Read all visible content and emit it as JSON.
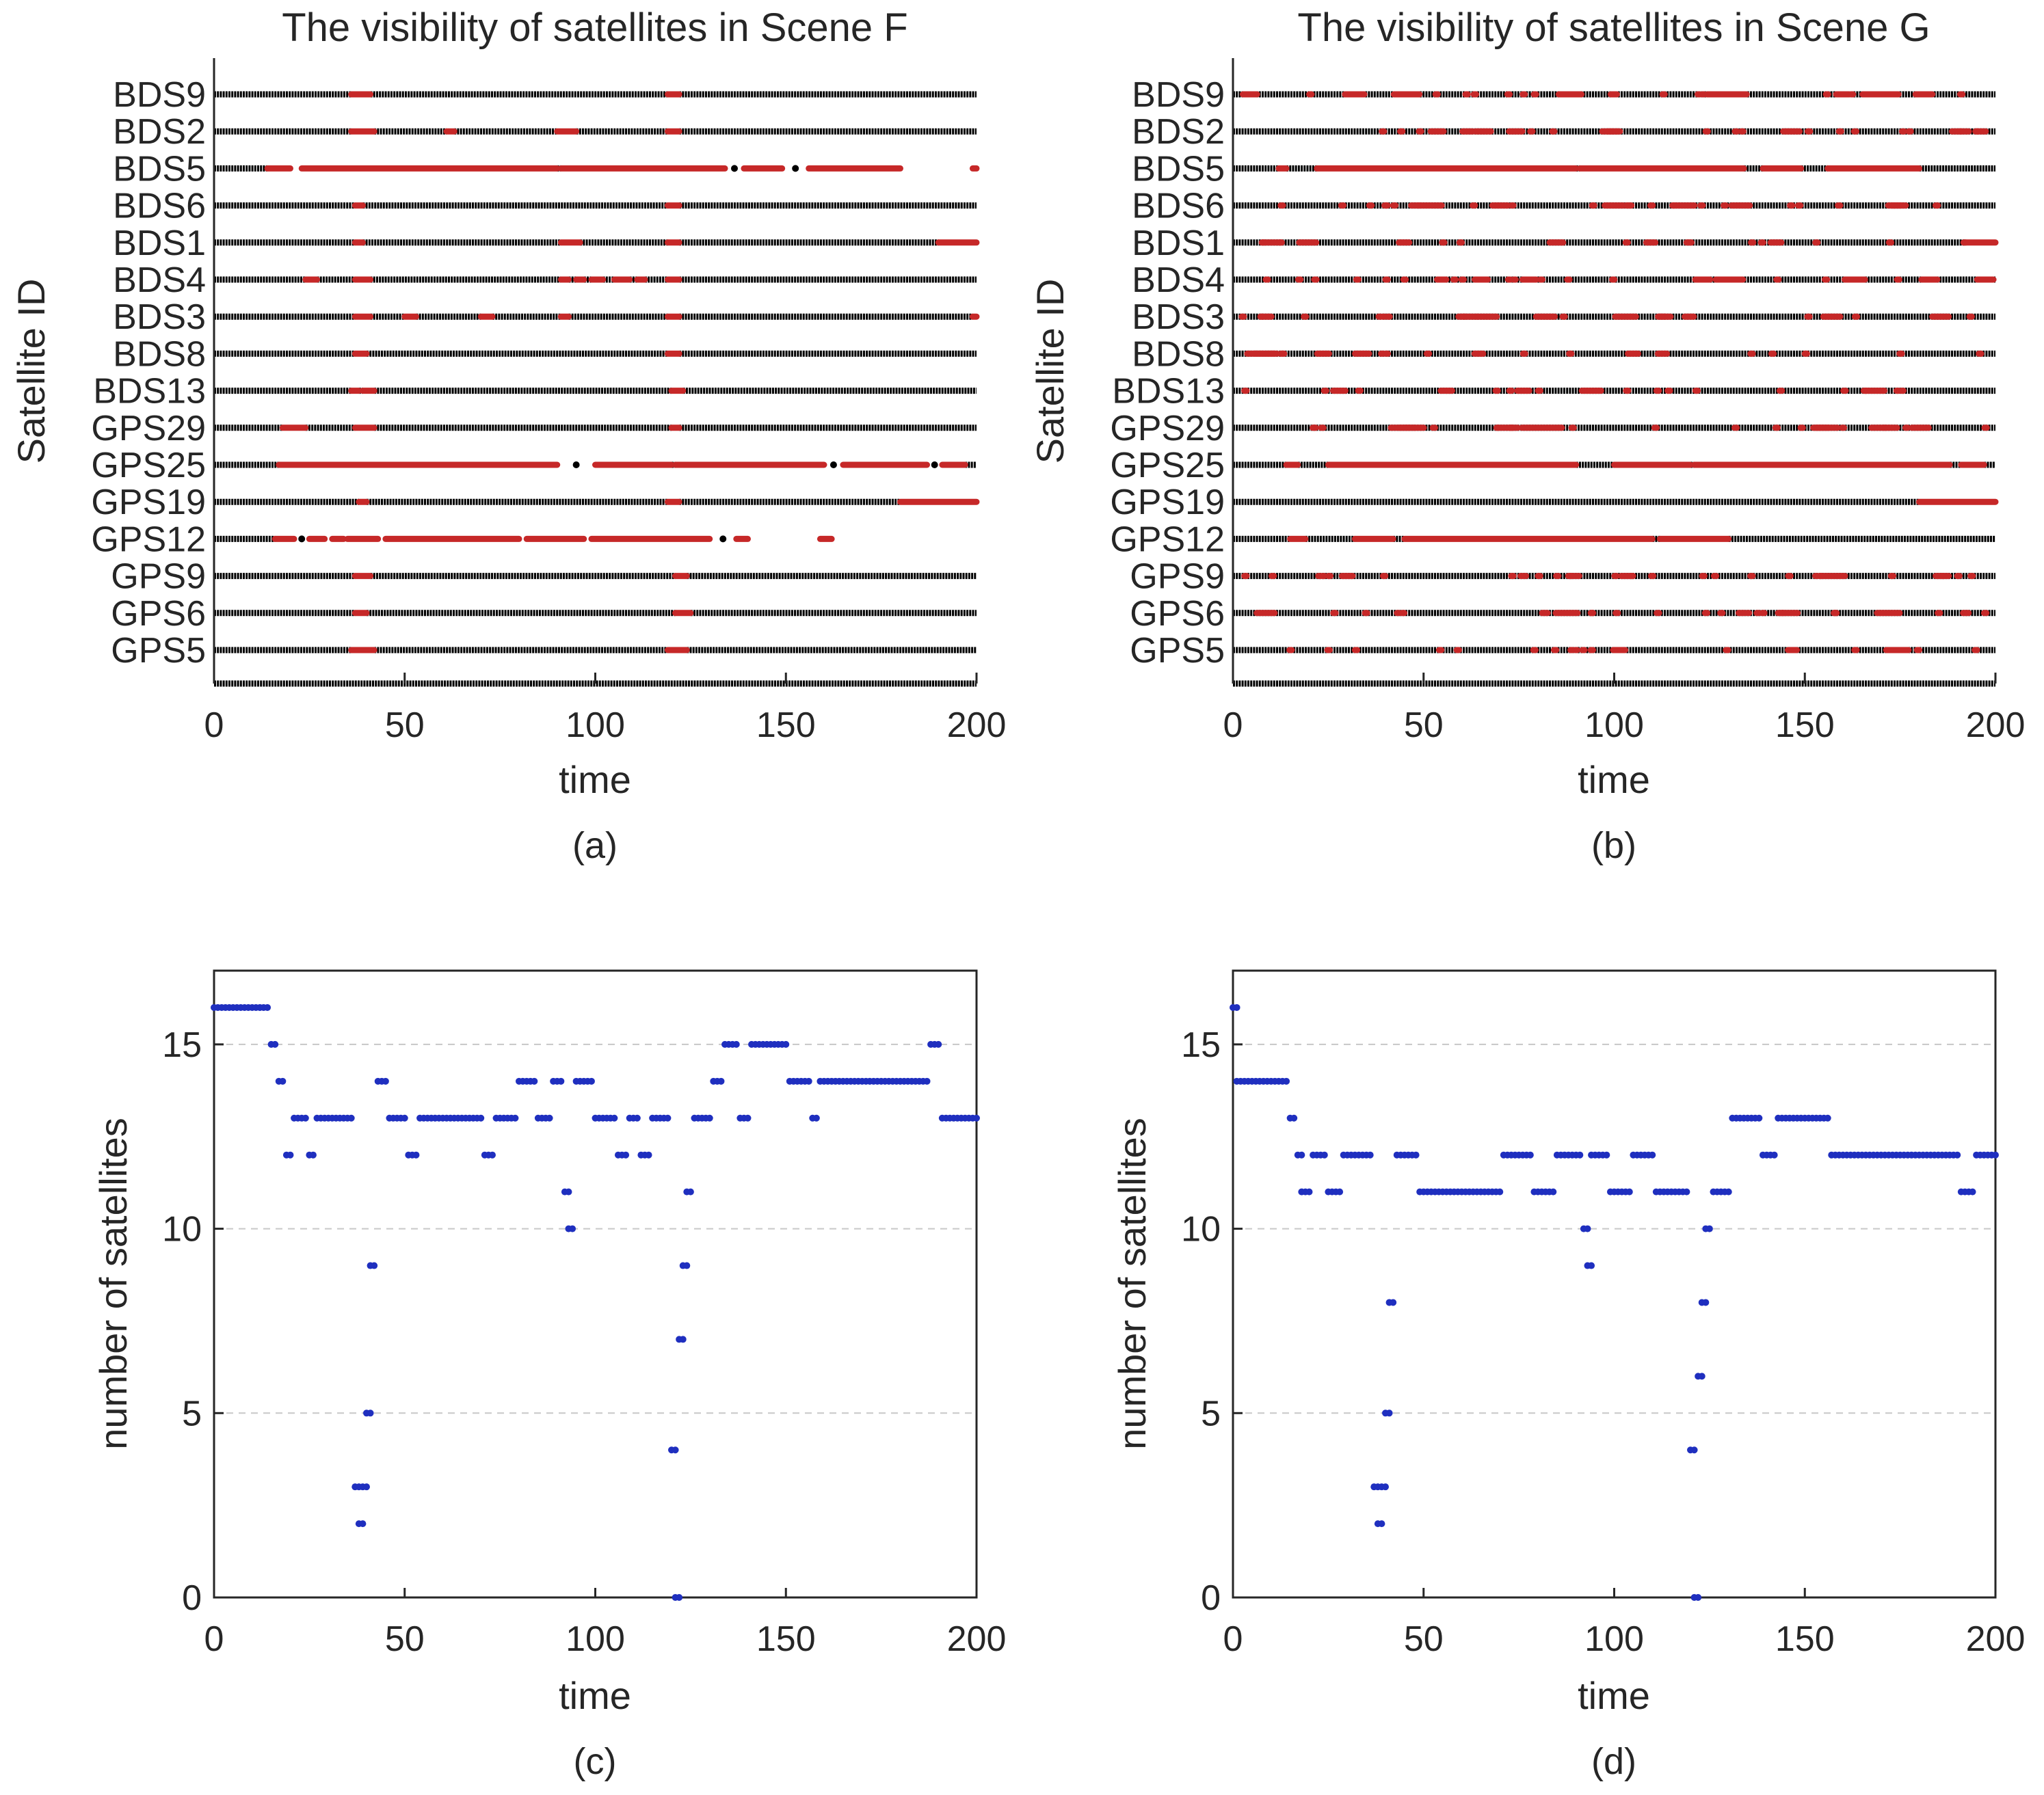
{
  "figure": {
    "background": "#ffffff"
  },
  "colors": {
    "visible": "#000000",
    "invisible": "#c62828",
    "count": "#1f2fbf",
    "grid": "#c8c8c8",
    "axis": "#262626"
  },
  "chart_data": [
    {
      "id": "a",
      "type": "scatter",
      "subtype": "visibility-timeline",
      "panel_label": "(a)",
      "title": "The visibility of satellites in Scene F",
      "xlabel": "time",
      "ylabel": "Satellite ID",
      "xlim": [
        0,
        200
      ],
      "xticks": [
        0,
        50,
        100,
        150,
        200
      ],
      "satellites": [
        "BDS9",
        "BDS2",
        "BDS5",
        "BDS6",
        "BDS1",
        "BDS4",
        "BDS3",
        "BDS8",
        "BDS13",
        "GPS29",
        "GPS25",
        "GPS19",
        "GPS12",
        "GPS9",
        "GPS6",
        "GPS5"
      ],
      "legend_semantics": {
        "black": "visible",
        "red": "not visible"
      },
      "red_intervals": {
        "BDS9": [
          [
            36,
            41
          ],
          [
            119,
            122
          ]
        ],
        "BDS2": [
          [
            36,
            42
          ],
          [
            61,
            63
          ],
          [
            90,
            95
          ],
          [
            119,
            122
          ]
        ],
        "BDS5": [
          [
            14,
            20
          ],
          [
            23,
            90
          ],
          [
            91,
            134
          ],
          [
            139,
            149
          ],
          [
            156,
            180
          ],
          [
            199,
            200
          ]
        ],
        "BDS6": [
          [
            37,
            39
          ],
          [
            119,
            122
          ]
        ],
        "BDS1": [
          [
            37,
            39
          ],
          [
            91,
            96
          ],
          [
            119,
            122
          ],
          [
            190,
            200
          ]
        ],
        "BDS4": [
          [
            24,
            27
          ],
          [
            37,
            41
          ],
          [
            91,
            93
          ],
          [
            95,
            97
          ],
          [
            99,
            102
          ],
          [
            105,
            109
          ],
          [
            111,
            113
          ],
          [
            119,
            122
          ]
        ],
        "BDS3": [
          [
            37,
            41
          ],
          [
            50,
            53
          ],
          [
            70,
            73
          ],
          [
            91,
            93
          ],
          [
            119,
            122
          ],
          [
            199,
            200
          ]
        ],
        "BDS8": [
          [
            37,
            40
          ],
          [
            119,
            122
          ]
        ],
        "BDS13": [
          [
            36,
            38
          ],
          [
            39,
            42
          ],
          [
            120,
            123
          ]
        ],
        "GPS29": [
          [
            18,
            24
          ],
          [
            37,
            42
          ],
          [
            120,
            122
          ]
        ],
        "GPS25": [
          [
            17,
            90
          ],
          [
            100,
            120
          ],
          [
            121,
            160
          ],
          [
            165,
            187
          ],
          [
            191,
            197
          ]
        ],
        "GPS19": [
          [
            38,
            40
          ],
          [
            119,
            122
          ],
          [
            180,
            200
          ]
        ],
        "GPS12": [
          [
            16,
            21
          ],
          [
            25,
            29
          ],
          [
            31,
            34
          ],
          [
            35,
            43
          ],
          [
            45,
            80
          ],
          [
            82,
            97
          ],
          [
            99,
            130
          ],
          [
            137,
            140
          ],
          [
            159,
            162
          ]
        ],
        "GPS9": [
          [
            37,
            41
          ],
          [
            121,
            124
          ]
        ],
        "GPS6": [
          [
            37,
            40
          ],
          [
            121,
            125
          ]
        ],
        "GPS5": [
          [
            36,
            42
          ],
          [
            119,
            124
          ]
        ]
      },
      "black_gaps": {
        "BDS5": [
          [
            20,
            23
          ],
          [
            134,
            139
          ],
          [
            149,
            156
          ],
          [
            180,
            199
          ]
        ],
        "GPS25": [
          [
            90,
            100
          ],
          [
            160,
            165
          ],
          [
            187,
            191
          ]
        ],
        "GPS12": [
          [
            21,
            25
          ],
          [
            29,
            31
          ],
          [
            34,
            35
          ],
          [
            43,
            45
          ],
          [
            80,
            82
          ],
          [
            97,
            99
          ],
          [
            130,
            137
          ],
          [
            140,
            159
          ],
          [
            162,
            200
          ]
        ]
      }
    },
    {
      "id": "b",
      "type": "scatter",
      "subtype": "visibility-timeline",
      "panel_label": "(b)",
      "title": "The visibility of satellites in Scene G",
      "xlabel": "time",
      "ylabel": "Satellite ID",
      "xlim": [
        0,
        200
      ],
      "xticks": [
        0,
        50,
        100,
        150,
        200
      ],
      "satellites": [
        "BDS9",
        "BDS2",
        "BDS5",
        "BDS6",
        "BDS1",
        "BDS4",
        "BDS3",
        "BDS8",
        "BDS13",
        "GPS29",
        "GPS25",
        "GPS19",
        "GPS12",
        "GPS9",
        "GPS6",
        "GPS5"
      ],
      "legend_semantics": {
        "black": "visible",
        "red": "not visible"
      },
      "red_intervals": {
        "BDS5": [
          [
            12,
            14
          ],
          [
            22,
            90
          ],
          [
            91,
            134
          ],
          [
            139,
            149
          ],
          [
            156,
            180
          ]
        ],
        "GPS25": [
          [
            14,
            17
          ],
          [
            25,
            90
          ],
          [
            100,
            120
          ],
          [
            121,
            188
          ],
          [
            191,
            197
          ]
        ],
        "GPS19": [
          [
            180,
            200
          ]
        ],
        "GPS12": [
          [
            15,
            19
          ],
          [
            32,
            42
          ],
          [
            45,
            110
          ],
          [
            112,
            130
          ]
        ],
        "BDS1": [
          [
            192,
            200
          ]
        ]
      },
      "red_point_rows": [
        "BDS9",
        "BDS2",
        "BDS6",
        "BDS1",
        "BDS4",
        "BDS3",
        "BDS8",
        "BDS13",
        "GPS29",
        "GPS9",
        "GPS6",
        "GPS5"
      ],
      "red_point_density": "scattered isolated points across full time range"
    },
    {
      "id": "c",
      "type": "scatter",
      "panel_label": "(c)",
      "title": "",
      "xlabel": "time",
      "ylabel": "number of satellites",
      "xlim": [
        0,
        200
      ],
      "ylim": [
        0,
        17
      ],
      "xticks": [
        0,
        50,
        100,
        150,
        200
      ],
      "yticks": [
        0,
        5,
        10,
        15
      ],
      "grid": "horizontal dashed",
      "segments": [
        [
          0,
          14,
          16
        ],
        [
          15,
          16,
          15
        ],
        [
          17,
          18,
          14
        ],
        [
          19,
          20,
          12
        ],
        [
          21,
          24,
          13
        ],
        [
          25,
          26,
          12
        ],
        [
          27,
          30,
          13
        ],
        [
          31,
          36,
          13
        ],
        [
          37,
          38,
          3
        ],
        [
          38,
          39,
          2
        ],
        [
          39,
          40,
          3
        ],
        [
          40,
          41,
          5
        ],
        [
          41,
          42,
          9
        ],
        [
          43,
          45,
          14
        ],
        [
          46,
          50,
          13
        ],
        [
          51,
          53,
          12
        ],
        [
          54,
          70,
          13
        ],
        [
          71,
          73,
          12
        ],
        [
          74,
          79,
          13
        ],
        [
          80,
          84,
          14
        ],
        [
          85,
          88,
          13
        ],
        [
          89,
          91,
          14
        ],
        [
          92,
          93,
          11
        ],
        [
          93,
          94,
          10
        ],
        [
          95,
          99,
          14
        ],
        [
          100,
          105,
          13
        ],
        [
          106,
          108,
          12
        ],
        [
          109,
          111,
          13
        ],
        [
          112,
          114,
          12
        ],
        [
          115,
          119,
          13
        ],
        [
          120,
          121,
          4
        ],
        [
          121,
          122,
          0
        ],
        [
          122,
          123,
          7
        ],
        [
          123,
          124,
          9
        ],
        [
          124,
          125,
          11
        ],
        [
          126,
          130,
          13
        ],
        [
          131,
          133,
          14
        ],
        [
          134,
          137,
          15
        ],
        [
          138,
          140,
          13
        ],
        [
          141,
          145,
          15
        ],
        [
          146,
          150,
          15
        ],
        [
          151,
          156,
          14
        ],
        [
          157,
          158,
          13
        ],
        [
          159,
          170,
          14
        ],
        [
          171,
          180,
          14
        ],
        [
          181,
          187,
          14
        ],
        [
          188,
          190,
          15
        ],
        [
          191,
          194,
          13
        ],
        [
          195,
          200,
          13
        ]
      ],
      "values_note": "time in data units, y = number of visible satellites"
    },
    {
      "id": "d",
      "type": "scatter",
      "panel_label": "(d)",
      "title": "",
      "xlabel": "time",
      "ylabel": "number of satellites",
      "xlim": [
        0,
        200
      ],
      "ylim": [
        0,
        17
      ],
      "xticks": [
        0,
        50,
        100,
        150,
        200
      ],
      "yticks": [
        0,
        5,
        10,
        15
      ],
      "grid": "horizontal dashed",
      "segments": [
        [
          0,
          1,
          16
        ],
        [
          1,
          14,
          14
        ],
        [
          15,
          16,
          13
        ],
        [
          17,
          18,
          12
        ],
        [
          18,
          20,
          11
        ],
        [
          21,
          24,
          12
        ],
        [
          25,
          28,
          11
        ],
        [
          29,
          36,
          12
        ],
        [
          37,
          38,
          3
        ],
        [
          38,
          39,
          2
        ],
        [
          39,
          40,
          3
        ],
        [
          40,
          41,
          5
        ],
        [
          41,
          42,
          8
        ],
        [
          43,
          48,
          12
        ],
        [
          49,
          51,
          11
        ],
        [
          52,
          70,
          11
        ],
        [
          71,
          78,
          12
        ],
        [
          79,
          84,
          11
        ],
        [
          85,
          91,
          12
        ],
        [
          92,
          93,
          10
        ],
        [
          93,
          94,
          9
        ],
        [
          94,
          98,
          12
        ],
        [
          99,
          104,
          11
        ],
        [
          105,
          110,
          12
        ],
        [
          111,
          119,
          11
        ],
        [
          120,
          121,
          4
        ],
        [
          121,
          122,
          0
        ],
        [
          122,
          123,
          6
        ],
        [
          123,
          124,
          8
        ],
        [
          124,
          125,
          10
        ],
        [
          126,
          130,
          11
        ],
        [
          131,
          138,
          13
        ],
        [
          139,
          142,
          12
        ],
        [
          143,
          150,
          13
        ],
        [
          151,
          156,
          13
        ],
        [
          157,
          160,
          12
        ],
        [
          161,
          170,
          12
        ],
        [
          171,
          180,
          12
        ],
        [
          181,
          190,
          12
        ],
        [
          191,
          194,
          11
        ],
        [
          195,
          200,
          12
        ]
      ],
      "values_note": "time in data units, y = number of visible satellites"
    }
  ]
}
